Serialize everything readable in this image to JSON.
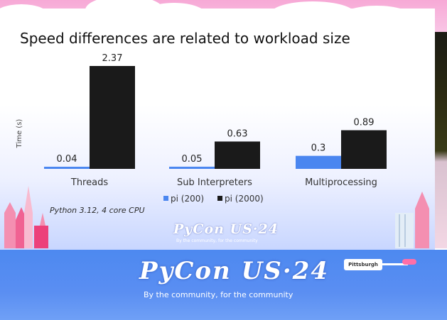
{
  "slide": {
    "title": "Speed differences are related to workload size",
    "note": "Python 3.12, 4 core CPU",
    "brand": "PyCon US·24",
    "tagline": "By the community, for the community"
  },
  "banner": {
    "brand": "PyCon US·24",
    "tagline": "By the community, for the community",
    "sign": "Pittsburgh"
  },
  "colors": {
    "pi_200": "#4a86f0",
    "pi_2000": "#1a1a1a",
    "banner": "#4d89f0"
  },
  "chart_data": {
    "type": "bar",
    "title": "Speed differences are related to workload size",
    "xlabel": "",
    "ylabel": "Time (s)",
    "categories": [
      "Threads",
      "Sub Interpreters",
      "Multiprocessing"
    ],
    "series": [
      {
        "name": "pi (200)",
        "values": [
          0.04,
          0.05,
          0.3
        ],
        "color": "#4a86f0"
      },
      {
        "name": "pi (2000)",
        "values": [
          2.37,
          0.63,
          0.89
        ],
        "color": "#1a1a1a"
      }
    ],
    "data_labels": [
      [
        "0.04",
        "0.05",
        "0.3"
      ],
      [
        "2.37",
        "0.63",
        "0.89"
      ]
    ],
    "ylim": [
      0,
      2.37
    ],
    "grid": false,
    "legend_position": "bottom"
  }
}
